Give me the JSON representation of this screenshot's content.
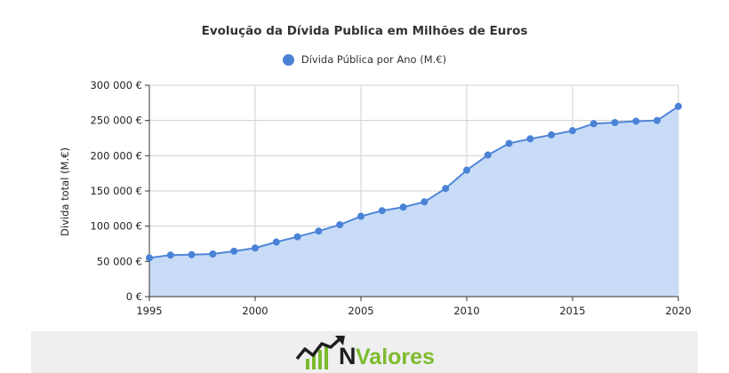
{
  "chart_data": {
    "type": "area",
    "title": "Evolução da Dívida Publica em Milhões de Euros",
    "legend": "top-center",
    "series": [
      {
        "name": "Dívida Pública por Ano (M.€)",
        "values": [
          55000,
          59000,
          59500,
          60500,
          64500,
          69000,
          77500,
          85000,
          93000,
          102000,
          114000,
          122000,
          127000,
          134500,
          153500,
          179500,
          201000,
          217500,
          224000,
          229500,
          235500,
          245500,
          247000,
          249000,
          250000,
          270000
        ]
      }
    ],
    "x": [
      1995,
      1996,
      1997,
      1998,
      1999,
      2000,
      2001,
      2002,
      2003,
      2004,
      2005,
      2006,
      2007,
      2008,
      2009,
      2010,
      2011,
      2012,
      2013,
      2014,
      2015,
      2016,
      2017,
      2018,
      2019,
      2020
    ],
    "xticks": [
      1995,
      2000,
      2005,
      2010,
      2015,
      2020
    ],
    "yticks": [
      0,
      50000,
      100000,
      150000,
      200000,
      250000,
      300000
    ],
    "ytick_labels": [
      "0 €",
      "50 000 €",
      "100 000 €",
      "150 000 €",
      "200 000 €",
      "250 000 €",
      "300 000 €"
    ],
    "xlim": [
      1995,
      2020
    ],
    "ylim": [
      0,
      300000
    ],
    "xlabel": "",
    "ylabel": "Divida total (M.€)",
    "grid": true
  },
  "colors": {
    "line": "#4f86d8",
    "area": "#c5daf7",
    "marker": "#4a82d6",
    "grid": "#d0d0d0",
    "axis": "#333333",
    "logo_green": "#7dbb2e",
    "logo_dark": "#1f1f1f"
  },
  "logo": {
    "mark": "N",
    "text": "Valores"
  }
}
